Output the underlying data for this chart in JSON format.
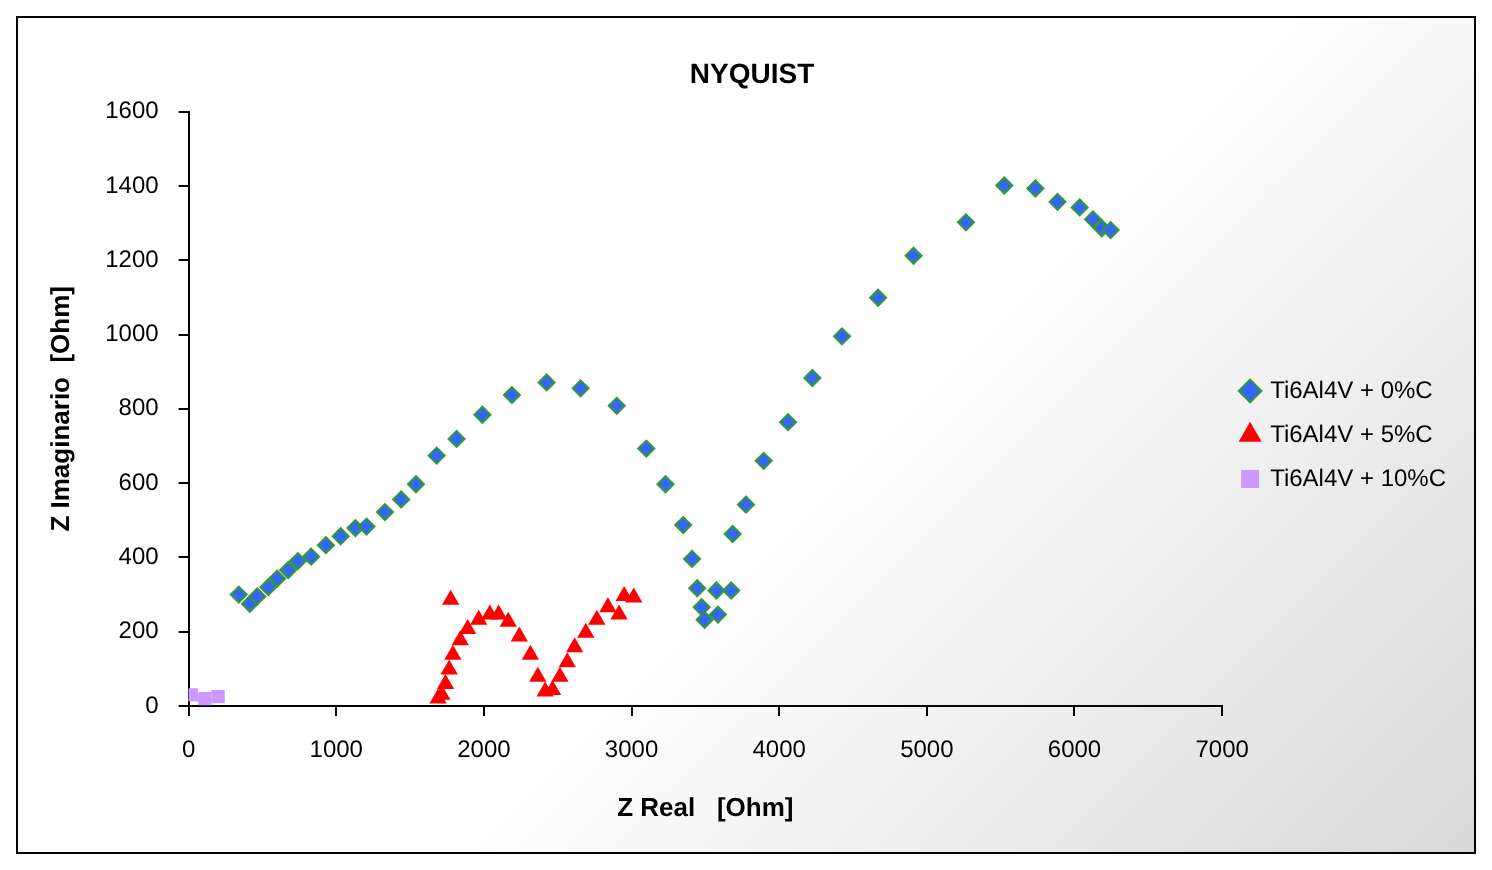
{
  "chart_data": {
    "type": "scatter",
    "title": "NYQUIST",
    "xlabel": "Z Real   [Ohm]",
    "ylabel": "Z Imaginario  [Ohm]",
    "xlim": [
      0,
      7000
    ],
    "xticks": [
      0,
      1000,
      2000,
      3000,
      4000,
      5000,
      6000,
      7000
    ],
    "ylim": [
      0,
      1600
    ],
    "yticks": [
      0,
      200,
      400,
      600,
      800,
      1000,
      1200,
      1400,
      1600
    ],
    "grid": false,
    "legend": "right",
    "series": [
      {
        "name": "Ti6Al4V + 0%C",
        "color": "#3366ff",
        "marker": "diamond",
        "x": [
          340,
          415,
          465,
          540,
          600,
          675,
          740,
          830,
          930,
          1030,
          1130,
          1205,
          1330,
          1440,
          1540,
          1680,
          1815,
          1990,
          2190,
          2425,
          2655,
          2900,
          3100,
          3230,
          3350,
          3410,
          3445,
          3475,
          3495,
          3585,
          3575,
          3675,
          3685,
          3775,
          3895,
          4060,
          4225,
          4425,
          4670,
          4910,
          5265,
          5525,
          5735,
          5885,
          6035,
          6125,
          6185,
          6245
        ],
        "values": [
          300,
          275,
          295,
          320,
          343,
          366,
          390,
          402,
          433,
          457,
          479,
          483,
          522,
          556,
          597,
          674,
          719,
          784,
          837,
          871,
          855,
          808,
          693,
          597,
          487,
          396,
          317,
          266,
          232,
          246,
          311,
          311,
          463,
          542,
          660,
          764,
          883,
          995,
          1099,
          1212,
          1302,
          1401,
          1393,
          1357,
          1342,
          1310,
          1286,
          1281
        ]
      },
      {
        "name": "Ti6Al4V + 5%C",
        "color": "#ff0000",
        "marker": "triangle",
        "x": [
          1690,
          1715,
          1740,
          1765,
          1775,
          1790,
          1840,
          1890,
          1965,
          2040,
          2100,
          2165,
          2240,
          2315,
          2365,
          2415,
          2465,
          2515,
          2565,
          2615,
          2690,
          2765,
          2840,
          2915,
          2950,
          3015
        ],
        "values": [
          20,
          30,
          59,
          98,
          286,
          138,
          177,
          207,
          232,
          246,
          246,
          227,
          187,
          138,
          79,
          39,
          43,
          79,
          118,
          158,
          197,
          232,
          266,
          246,
          296,
          292
        ]
      },
      {
        "name": "Ti6Al4V + 10%C",
        "color": "#cc99ff",
        "marker": "square",
        "x": [
          20,
          110,
          200
        ],
        "values": [
          30,
          20,
          25
        ]
      }
    ]
  }
}
